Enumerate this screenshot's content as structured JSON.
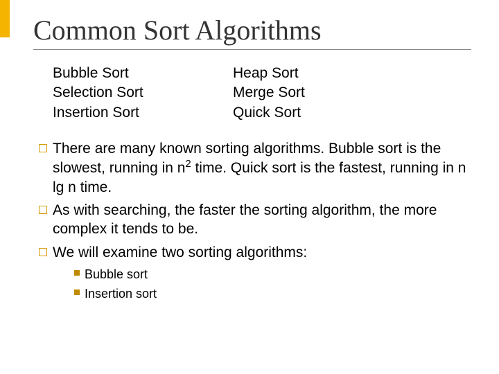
{
  "accent_color": "#f4b400",
  "title": "Common Sort Algorithms",
  "columns": {
    "left": [
      "Bubble Sort",
      "Selection Sort",
      "Insertion Sort"
    ],
    "right": [
      "Heap Sort",
      "Merge Sort",
      "Quick Sort"
    ]
  },
  "bullets": [
    {
      "pre": "There are many known sorting algorithms.   Bubble sort is the slowest, running in  n",
      "sup": "2",
      "post": " time.  Quick sort is the fastest, running in  n lg n  time."
    },
    {
      "text": "As with searching, the faster the sorting algorithm, the more complex it tends to be."
    },
    {
      "text": "We will examine two sorting algorithms:"
    }
  ],
  "sub_bullets": [
    "Bubble sort",
    "Insertion sort"
  ],
  "bullet_outline_color": "#d49a00",
  "sub_bullet_fill_color": "#c08a00"
}
